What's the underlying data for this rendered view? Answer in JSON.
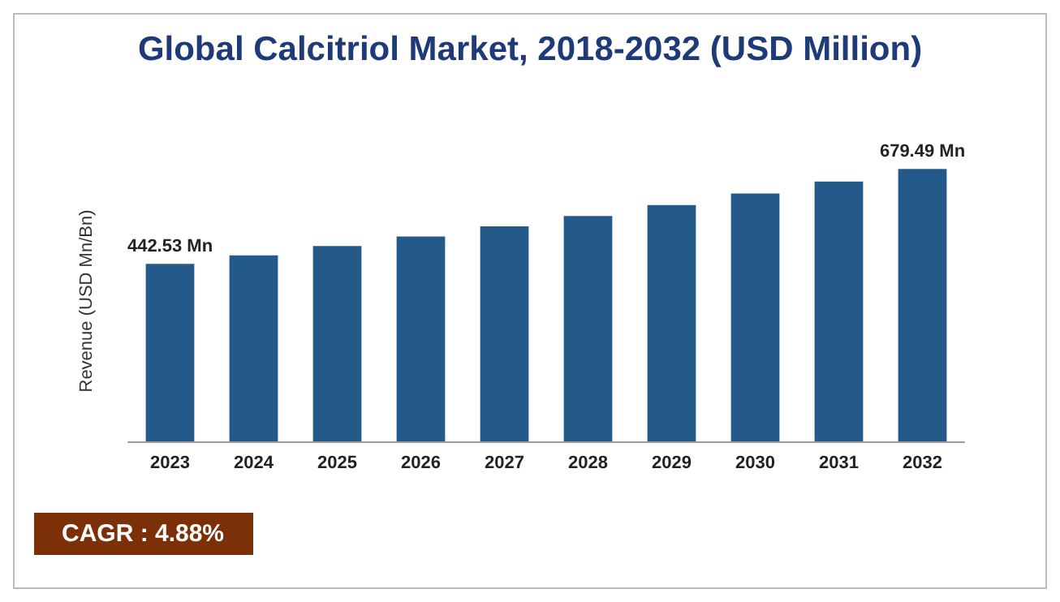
{
  "chart_data": {
    "type": "bar",
    "title": "Global Calcitriol Market, 2018-2032 (USD Million)",
    "ylabel": "Revenue (USD Mn/Bn)",
    "categories": [
      "2023",
      "2024",
      "2025",
      "2026",
      "2027",
      "2028",
      "2029",
      "2030",
      "2031",
      "2032"
    ],
    "values": [
      442.53,
      464,
      487,
      511,
      536,
      562,
      589,
      618,
      648,
      679.49
    ],
    "value_labels": [
      "442.53 Mn",
      null,
      null,
      null,
      null,
      null,
      null,
      null,
      null,
      "679.49 Mn"
    ],
    "color": "#245a89",
    "annotations": [
      "CAGR : 4.88%"
    ]
  }
}
